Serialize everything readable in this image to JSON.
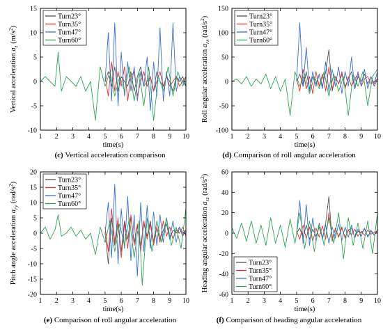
{
  "legend_items": [
    "Turn23°",
    "Turn35°",
    "Turn47°",
    "Turn60°"
  ],
  "colors": {
    "Turn23°": "#555555",
    "Turn35°": "#e0312a",
    "Turn47°": "#3b6fd3",
    "Turn60°": "#2fa456"
  },
  "chart_data": [
    {
      "type": "line",
      "caption_label": "(c)",
      "caption": "Vertical acceleration comparison",
      "xlabel": "time(s)",
      "ylabel": "Vertical acceleration a_z (m/s²)",
      "ylabel_pre": "Vertical acceleration ",
      "ylabel_var": "a",
      "ylabel_sub": "z",
      "ylabel_unit": " (m/s",
      "ylabel_post": ")",
      "xlim": [
        1,
        10
      ],
      "ylim": [
        -10,
        15
      ],
      "xticks": [
        1,
        2,
        3,
        4,
        5,
        6,
        7,
        8,
        9,
        10
      ],
      "yticks": [
        -10,
        -5,
        0,
        5,
        10,
        15
      ],
      "legend": "top-left",
      "series": [
        {
          "name": "Turn23°",
          "x": [
            5.0,
            5.2,
            5.4,
            5.6,
            5.8,
            6.0,
            6.2,
            6.4,
            6.6,
            6.8,
            7.0,
            7.2,
            7.4,
            7.6,
            7.8,
            8.0,
            8.2,
            8.4,
            8.6,
            8.8,
            9.0,
            9.2,
            9.4,
            9.6,
            9.8,
            10.0
          ],
          "y": [
            0,
            2,
            -1,
            3,
            -2,
            1,
            0,
            -1,
            2,
            -2,
            1,
            3,
            -1,
            0,
            1,
            -2,
            2,
            0,
            -1,
            1,
            0,
            -2,
            1,
            0,
            1,
            -1
          ]
        },
        {
          "name": "Turn35°",
          "x": [
            5.0,
            5.2,
            5.4,
            5.6,
            5.8,
            6.0,
            6.2,
            6.4,
            6.6,
            6.8,
            7.0,
            7.2,
            7.4,
            7.6,
            7.8,
            8.0,
            8.2,
            8.4,
            8.6,
            8.8,
            9.0,
            9.2,
            9.4,
            9.6,
            9.8,
            10.0
          ],
          "y": [
            1,
            -3,
            4,
            -2,
            2,
            -1,
            3,
            -4,
            1,
            2,
            -3,
            0,
            2,
            -1,
            1,
            -2,
            0,
            2,
            -1,
            1,
            -1,
            0,
            1,
            -1,
            0,
            1
          ]
        },
        {
          "name": "Turn47°",
          "x": [
            5.0,
            5.2,
            5.4,
            5.6,
            5.8,
            6.0,
            6.2,
            6.4,
            6.6,
            6.8,
            7.0,
            7.2,
            7.4,
            7.6,
            7.8,
            8.0,
            8.2,
            8.4,
            8.6,
            8.8,
            9.0,
            9.2,
            9.4,
            9.6,
            9.8,
            10.0
          ],
          "y": [
            0,
            10,
            -4,
            12,
            -5,
            6,
            -3,
            4,
            -2,
            3,
            -4,
            2,
            -1,
            5,
            -6,
            4,
            -3,
            11,
            -4,
            2,
            -3,
            12,
            -2,
            1,
            0,
            -1
          ]
        },
        {
          "name": "Turn60°",
          "x": [
            1.0,
            1.3,
            1.6,
            1.9,
            2.1,
            2.3,
            2.6,
            2.9,
            3.2,
            3.5,
            3.8,
            4.1,
            4.4,
            4.7,
            5.0,
            5.3,
            5.6,
            5.9,
            6.2,
            6.5,
            6.8,
            7.1,
            7.4,
            7.7,
            8.0,
            8.3,
            8.6,
            8.9,
            9.2,
            9.5,
            9.8,
            10.0
          ],
          "y": [
            0,
            1,
            0,
            -1,
            6,
            -2,
            1,
            0,
            -1,
            1,
            -2,
            0,
            -8,
            3,
            -1,
            2,
            -3,
            1,
            -2,
            3,
            -4,
            2,
            -5,
            3,
            -8,
            1,
            -2,
            3,
            -3,
            2,
            -1,
            1
          ]
        }
      ]
    },
    {
      "type": "line",
      "caption_label": "(d)",
      "caption": "Comparison of roll angular acceleration",
      "xlabel": "time(s)",
      "ylabel": "Roll angular acceleration a_rx (rad/s²)",
      "ylabel_pre": "Roll angular acceleration ",
      "ylabel_var": "a",
      "ylabel_sub": "rx",
      "ylabel_unit": " (rad/s",
      "ylabel_post": ")",
      "xlim": [
        1,
        10
      ],
      "ylim": [
        -100,
        150
      ],
      "xticks": [
        1,
        2,
        3,
        4,
        5,
        6,
        7,
        8,
        9,
        10
      ],
      "yticks": [
        -100,
        -50,
        0,
        50,
        100,
        150
      ],
      "legend": "top-left",
      "series": [
        {
          "name": "Turn23°",
          "x": [
            5.0,
            5.2,
            5.4,
            5.6,
            5.8,
            6.0,
            6.2,
            6.4,
            6.6,
            6.8,
            7.0,
            7.2,
            7.4,
            7.6,
            7.8,
            8.0,
            8.2,
            8.4,
            8.6,
            8.8,
            9.0,
            9.2,
            9.4,
            9.6,
            9.8,
            10.0
          ],
          "y": [
            0,
            15,
            -10,
            20,
            -15,
            10,
            -5,
            15,
            -10,
            20,
            65,
            -20,
            10,
            -5,
            15,
            -10,
            5,
            20,
            -15,
            10,
            0,
            15,
            -5,
            10,
            -10,
            5
          ]
        },
        {
          "name": "Turn35°",
          "x": [
            5.0,
            5.2,
            5.4,
            5.6,
            5.8,
            6.0,
            6.2,
            6.4,
            6.6,
            6.8,
            7.0,
            7.2,
            7.4,
            7.6,
            7.8,
            8.0,
            8.2,
            8.4,
            8.6,
            8.8,
            9.0,
            9.2,
            9.4,
            9.6,
            9.8,
            10.0
          ],
          "y": [
            5,
            -20,
            25,
            -15,
            10,
            -25,
            20,
            -10,
            15,
            -20,
            30,
            -15,
            10,
            -5,
            20,
            -15,
            10,
            -10,
            5,
            15,
            -10,
            5,
            10,
            -5,
            0,
            5
          ]
        },
        {
          "name": "Turn47°",
          "x": [
            5.0,
            5.2,
            5.4,
            5.6,
            5.8,
            6.0,
            6.2,
            6.4,
            6.6,
            6.8,
            7.0,
            7.2,
            7.4,
            7.6,
            7.8,
            8.0,
            8.2,
            8.4,
            8.6,
            8.8,
            9.0,
            9.2,
            9.4,
            9.6,
            9.8,
            10.0
          ],
          "y": [
            0,
            120,
            -10,
            70,
            -20,
            20,
            -10,
            15,
            -15,
            40,
            -20,
            25,
            -10,
            30,
            -25,
            20,
            -10,
            50,
            -15,
            20,
            -10,
            25,
            -15,
            10,
            -5,
            20
          ]
        },
        {
          "name": "Turn60°",
          "x": [
            1.0,
            1.3,
            1.6,
            1.9,
            2.2,
            2.5,
            2.8,
            3.1,
            3.4,
            3.7,
            4.0,
            4.3,
            4.6,
            4.9,
            5.2,
            5.5,
            5.8,
            6.1,
            6.4,
            6.7,
            7.0,
            7.3,
            7.6,
            7.9,
            8.2,
            8.5,
            8.8,
            9.1,
            9.4,
            9.7,
            10.0
          ],
          "y": [
            0,
            5,
            -5,
            10,
            -10,
            5,
            -5,
            15,
            -15,
            10,
            -20,
            5,
            -70,
            20,
            -10,
            15,
            -25,
            10,
            -15,
            20,
            -30,
            15,
            -20,
            10,
            -70,
            15,
            -10,
            20,
            -50,
            10,
            25
          ]
        }
      ]
    },
    {
      "type": "line",
      "caption_label": "(e)",
      "caption": "Comparison of roll angular acceleration",
      "xlabel": "time(s)",
      "ylabel": "Pitch angle acceleration a_ry (rad/s²)",
      "ylabel_pre": "Pitch angle acceleration ",
      "ylabel_var": "a",
      "ylabel_sub": "ry",
      "ylabel_unit": " (rad/s",
      "ylabel_post": ")",
      "xlim": [
        1,
        10
      ],
      "ylim": [
        -20,
        20
      ],
      "xticks": [
        1,
        2,
        3,
        4,
        5,
        6,
        7,
        8,
        9,
        10
      ],
      "yticks": [
        -20,
        -15,
        -10,
        -5,
        0,
        5,
        10,
        15,
        20
      ],
      "legend": "top-left",
      "series": [
        {
          "name": "Turn23°",
          "x": [
            5.0,
            5.2,
            5.4,
            5.6,
            5.8,
            6.0,
            6.2,
            6.4,
            6.6,
            6.8,
            7.0,
            7.2,
            7.4,
            7.6,
            7.8,
            8.0,
            8.2,
            8.4,
            8.6,
            8.8,
            9.0,
            9.2,
            9.4,
            9.6,
            9.8,
            10.0
          ],
          "y": [
            0,
            -10,
            5,
            -4,
            3,
            -6,
            4,
            -2,
            5,
            -3,
            2,
            -4,
            3,
            -1,
            4,
            -3,
            2,
            -2,
            1,
            3,
            -2,
            1,
            0,
            2,
            -1,
            1
          ]
        },
        {
          "name": "Turn35°",
          "x": [
            5.0,
            5.2,
            5.4,
            5.6,
            5.8,
            6.0,
            6.2,
            6.4,
            6.6,
            6.8,
            7.0,
            7.2,
            7.4,
            7.6,
            7.8,
            8.0,
            8.2,
            8.4,
            8.6,
            8.8,
            9.0,
            9.2,
            9.4,
            9.6,
            9.8,
            10.0
          ],
          "y": [
            2,
            -6,
            8,
            -3,
            5,
            -8,
            3,
            -5,
            6,
            -4,
            3,
            -6,
            4,
            -2,
            3,
            -4,
            2,
            -3,
            4,
            -1,
            2,
            -2,
            1,
            0,
            2,
            -1
          ]
        },
        {
          "name": "Turn47°",
          "x": [
            5.0,
            5.2,
            5.4,
            5.6,
            5.8,
            6.0,
            6.2,
            6.4,
            6.6,
            6.8,
            7.0,
            7.2,
            7.4,
            7.6,
            7.8,
            8.0,
            8.2,
            8.4,
            8.6,
            8.8,
            9.0,
            9.2,
            9.4,
            9.6,
            9.8,
            10.0
          ],
          "y": [
            0,
            10,
            -8,
            16,
            -10,
            8,
            -5,
            12,
            -9,
            6,
            -14,
            10,
            -6,
            9,
            -5,
            7,
            -4,
            6,
            -3,
            5,
            -2,
            4,
            -3,
            2,
            0,
            1
          ]
        },
        {
          "name": "Turn60°",
          "x": [
            1.0,
            1.3,
            1.6,
            1.9,
            2.1,
            2.3,
            2.6,
            2.9,
            3.2,
            3.5,
            3.8,
            4.1,
            4.4,
            4.7,
            5.0,
            5.3,
            5.6,
            5.9,
            6.2,
            6.5,
            6.8,
            7.1,
            7.3,
            7.6,
            7.9,
            8.2,
            8.5,
            8.8,
            9.1,
            9.4,
            9.7,
            10.0
          ],
          "y": [
            0,
            2,
            -2,
            1,
            6,
            -1,
            0,
            2,
            -1,
            1,
            -2,
            0,
            -7,
            2,
            -3,
            4,
            -6,
            3,
            -4,
            5,
            -8,
            4,
            -17,
            5,
            -6,
            4,
            -3,
            5,
            -4,
            2,
            -5,
            8
          ]
        }
      ]
    },
    {
      "type": "line",
      "caption_label": "(f)",
      "caption": "Comparison of heading angular acceleration",
      "xlabel": "time(s)",
      "ylabel": "Heading angular acceleration a_rz (rad/s²)",
      "ylabel_pre": "Heading angular acceleration ",
      "ylabel_var": "a",
      "ylabel_sub": "rz",
      "ylabel_unit": " (rad/s",
      "ylabel_post": ")",
      "xlim": [
        1,
        10
      ],
      "ylim": [
        -60,
        60
      ],
      "xticks": [
        1,
        2,
        3,
        4,
        5,
        6,
        7,
        8,
        9,
        10
      ],
      "yticks": [
        -60,
        -40,
        -20,
        0,
        20,
        40,
        60
      ],
      "legend": "bottom-left",
      "series": [
        {
          "name": "Turn23°",
          "x": [
            5.0,
            5.2,
            5.4,
            5.6,
            5.8,
            6.0,
            6.2,
            6.4,
            6.6,
            6.8,
            7.0,
            7.2,
            7.4,
            7.6,
            7.8,
            8.0,
            8.2,
            8.4,
            8.6,
            8.8,
            9.0,
            9.2,
            9.4,
            9.6,
            9.8,
            10.0
          ],
          "y": [
            0,
            5,
            -5,
            8,
            -6,
            4,
            -3,
            6,
            -5,
            10,
            36,
            -8,
            5,
            -4,
            6,
            -5,
            3,
            5,
            -4,
            2,
            0,
            4,
            -3,
            2,
            -2,
            3
          ]
        },
        {
          "name": "Turn35°",
          "x": [
            5.0,
            5.2,
            5.4,
            5.6,
            5.8,
            6.0,
            6.2,
            6.4,
            6.6,
            6.8,
            7.0,
            7.2,
            7.4,
            7.6,
            7.8,
            8.0,
            8.2,
            8.4,
            8.6,
            8.8,
            9.0,
            9.2,
            9.4,
            9.6,
            9.8,
            10.0
          ],
          "y": [
            2,
            -6,
            8,
            -5,
            6,
            -8,
            5,
            -4,
            7,
            -6,
            20,
            -5,
            4,
            -3,
            5,
            -4,
            3,
            -2,
            4,
            -3,
            2,
            -2,
            3,
            -1,
            1,
            2
          ]
        },
        {
          "name": "Turn47°",
          "x": [
            5.0,
            5.2,
            5.4,
            5.6,
            5.8,
            6.0,
            6.2,
            6.4,
            6.6,
            6.8,
            7.0,
            7.2,
            7.4,
            7.6,
            7.8,
            8.0,
            8.2,
            8.4,
            8.6,
            8.8,
            9.0,
            9.2,
            9.4,
            9.6,
            9.8,
            10.0
          ],
          "y": [
            0,
            32,
            -10,
            28,
            -12,
            15,
            -8,
            10,
            -6,
            8,
            -10,
            6,
            -5,
            9,
            -7,
            6,
            -4,
            8,
            -5,
            4,
            -3,
            5,
            -4,
            3,
            -2,
            2
          ]
        },
        {
          "name": "Turn60°",
          "x": [
            1.0,
            1.3,
            1.6,
            1.9,
            2.2,
            2.5,
            2.8,
            3.1,
            3.4,
            3.7,
            4.0,
            4.3,
            4.6,
            4.9,
            5.2,
            5.5,
            5.8,
            6.1,
            6.4,
            6.7,
            7.0,
            7.3,
            7.6,
            7.9,
            8.2,
            8.5,
            8.8,
            9.1,
            9.4,
            9.7,
            10.0
          ],
          "y": [
            5,
            -5,
            10,
            -8,
            12,
            -10,
            8,
            -12,
            15,
            -10,
            8,
            -14,
            14,
            -10,
            20,
            -15,
            12,
            -18,
            10,
            -12,
            15,
            -10,
            20,
            -25,
            15,
            -12,
            10,
            -15,
            12,
            -20,
            20
          ]
        }
      ]
    }
  ]
}
